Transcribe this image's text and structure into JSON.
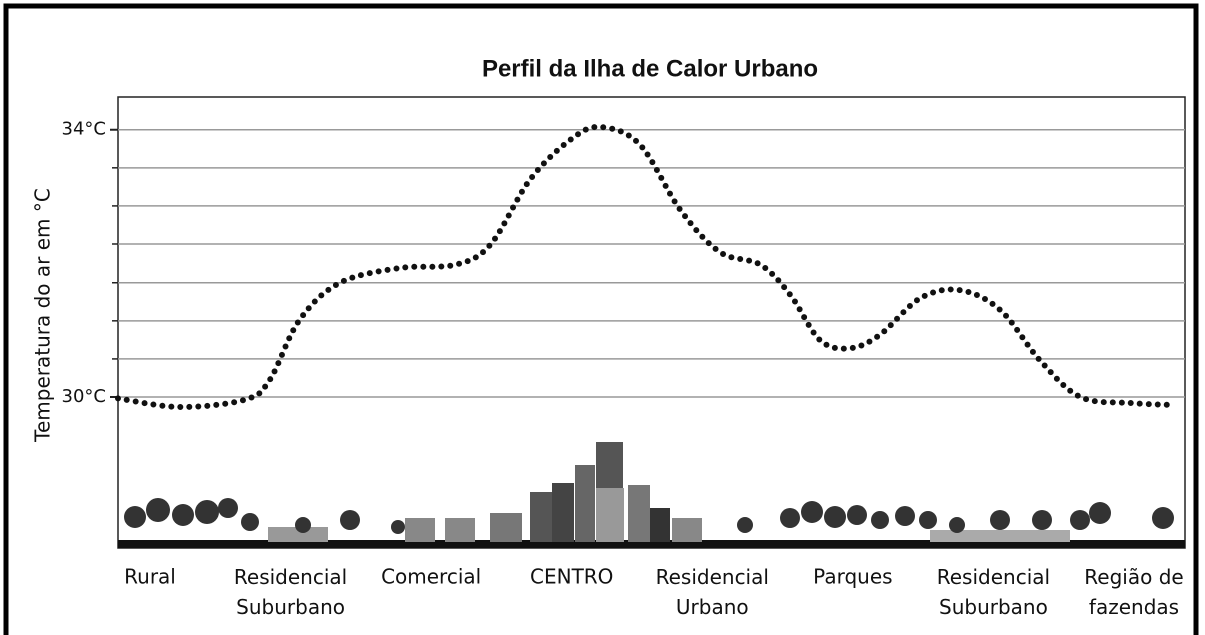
{
  "chart_data": {
    "type": "line",
    "title": "Perfil da Ilha de Calor Urbano",
    "y_label": "Temperatura do ar em °C",
    "categories": [
      "Rural",
      "Residencial Suburbano",
      "Comercial",
      "CENTRO",
      "Residencial Urbano",
      "Parques",
      "Residencial Suburbano",
      "Região de fazendas"
    ],
    "x": [
      0,
      5.8,
      11.9,
      14.2,
      17.0,
      20.8,
      26.4,
      31.6,
      34.9,
      38.6,
      42.4,
      45.2,
      48.9,
      52.7,
      56.4,
      60.2,
      63.0,
      65.8,
      68.6,
      71.4,
      75.2,
      78.9,
      82.7,
      86.4,
      90.2,
      94.9,
      99.1
    ],
    "series": [
      {
        "color": "#111111",
        "values": [
          29.98,
          29.85,
          29.96,
          30.25,
          31.15,
          31.71,
          31.93,
          31.98,
          32.28,
          33.25,
          33.85,
          34.04,
          33.78,
          32.8,
          32.17,
          31.98,
          31.53,
          30.85,
          30.73,
          30.93,
          31.48,
          31.6,
          31.3,
          30.55,
          30.0,
          29.91,
          29.88
        ]
      }
    ],
    "xlim": [
      0,
      100
    ],
    "ylim": [
      27.74,
      34.49
    ],
    "yticks": [
      {
        "value": 30,
        "label": "30°C"
      },
      {
        "value": 34,
        "label": "34°C"
      }
    ],
    "minor_yticks": [
      30.57,
      31.14,
      31.71,
      32.29,
      32.86,
      33.43
    ],
    "grid": true
  }
}
